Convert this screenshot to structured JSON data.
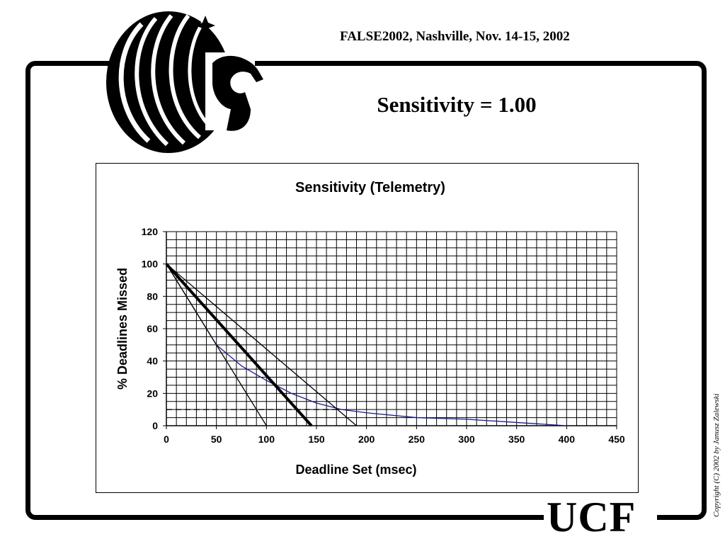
{
  "header": {
    "conference": "FALSE2002, Nashville,  Nov. 14-15, 2002",
    "slide_title": "Sensitivity = 1.00"
  },
  "branding": {
    "logo_icon": "pegasus-logo-icon",
    "wordmark": "UCF",
    "copyright": "Copyright (C) 2002 by Janusz Zalewski"
  },
  "chart_data": {
    "type": "line",
    "title": "Sensitivity (Telemetry)",
    "xlabel": "Deadline Set (msec)",
    "ylabel": "% Deadlines Missed",
    "xlim": [
      0,
      450
    ],
    "ylim": [
      0,
      120
    ],
    "x_ticks": [
      0,
      50,
      100,
      150,
      200,
      250,
      300,
      350,
      400,
      450
    ],
    "y_ticks": [
      0,
      20,
      40,
      60,
      80,
      100,
      120
    ],
    "grid": true,
    "legend": "none",
    "series": [
      {
        "color": "#1a1a8c",
        "style": "thin",
        "x": [
          0,
          25,
          50,
          75,
          100,
          125,
          150,
          175,
          200,
          250,
          300,
          350,
          400
        ],
        "y": [
          100,
          75,
          50,
          37,
          28,
          20,
          14,
          10,
          8,
          5,
          4,
          2,
          0
        ]
      },
      {
        "color": "#000000",
        "style": "thick",
        "x": [
          0,
          145
        ],
        "y": [
          100,
          0
        ]
      },
      {
        "color": "#000000",
        "style": "thin",
        "x": [
          0,
          100
        ],
        "y": [
          100,
          0
        ]
      },
      {
        "color": "#000000",
        "style": "thin",
        "x": [
          0,
          190
        ],
        "y": [
          100,
          0
        ]
      },
      {
        "color": "#000000",
        "style": "dashed",
        "x": [
          0,
          170
        ],
        "y": [
          10,
          10
        ]
      }
    ]
  }
}
